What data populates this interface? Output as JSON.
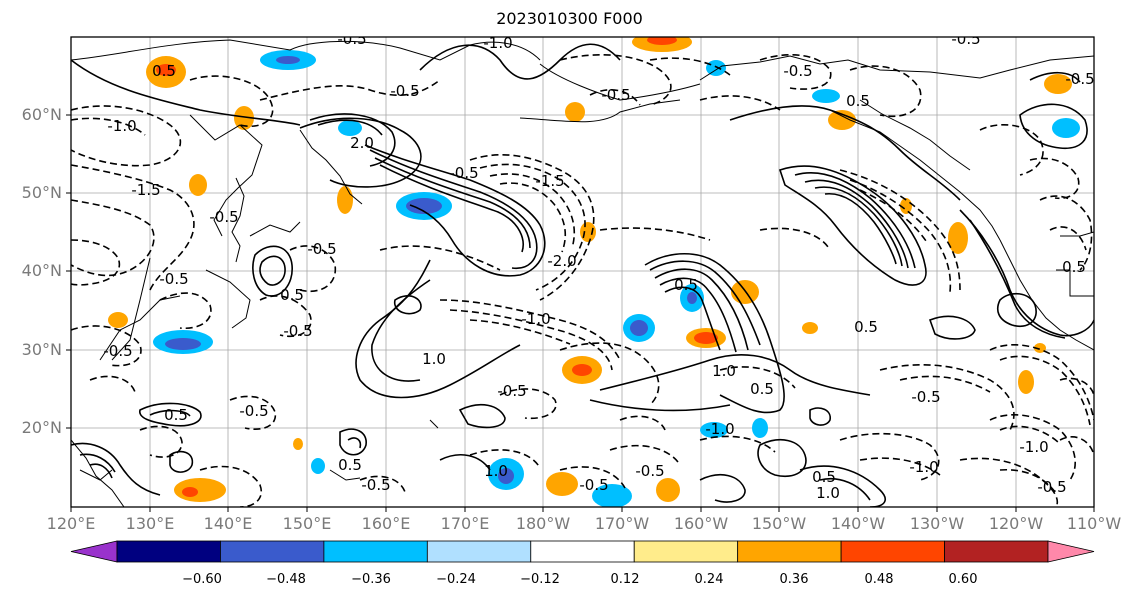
{
  "title": "2023010300 F000",
  "lat_labels": [
    "60°N",
    "50°N",
    "40°N",
    "30°N",
    "20°N"
  ],
  "lon_labels": [
    "120°E",
    "130°E",
    "140°E",
    "150°E",
    "160°E",
    "170°E",
    "180°W",
    "170°W",
    "160°W",
    "150°W",
    "140°W",
    "130°W",
    "120°W",
    "110°W"
  ],
  "colorbar": {
    "colors": [
      "#9932cc",
      "#000080",
      "#3a5bcc",
      "#00bfff",
      "#b0e0ff",
      "#ffffff",
      "#ffec8b",
      "#ffa500",
      "#ff4500",
      "#b22222",
      "#ff88aa"
    ],
    "ticks": [
      "−0.60",
      "−0.48",
      "−0.36",
      "−0.24",
      "−0.12",
      "0.12",
      "0.24",
      "0.36",
      "0.48",
      "0.60"
    ]
  },
  "contour_labels": {
    "c01": "0.5",
    "c02": "-1.0",
    "c03": "-0.5",
    "c04": "-1.5",
    "c05": "-0.5",
    "c06": "-0.5",
    "c07": "-0.5",
    "c08": "2.0",
    "c09": "-0.5",
    "c10": "0.5",
    "c11": "-0.5",
    "c12": "1.0",
    "c13": "-0.5",
    "c14": "-1.0",
    "c15": "-0.5",
    "c16": "-2.0",
    "c17": "-1.5",
    "c18": "-1.0",
    "c19": "-0.5",
    "c20": "0.5",
    "c21": "1.0",
    "c22": "-0.5",
    "c23": "0.5",
    "c24": "-0.5",
    "c25": "0.5",
    "c26": "0.5",
    "c27": "-0.5",
    "c28": "-1.0",
    "c29": "-0.5",
    "c30": "0.5",
    "c31": "-0.5",
    "c32": "1.0",
    "c33": "-0.5",
    "c34": "0.5",
    "c35": "-0.5",
    "c36": "-0.5",
    "c37": "-1.0",
    "c38": "0.5",
    "c39": "-1.0",
    "c40": "-0.5",
    "c41": "0.5",
    "c42": "-0.5",
    "c43": "1.0"
  }
}
